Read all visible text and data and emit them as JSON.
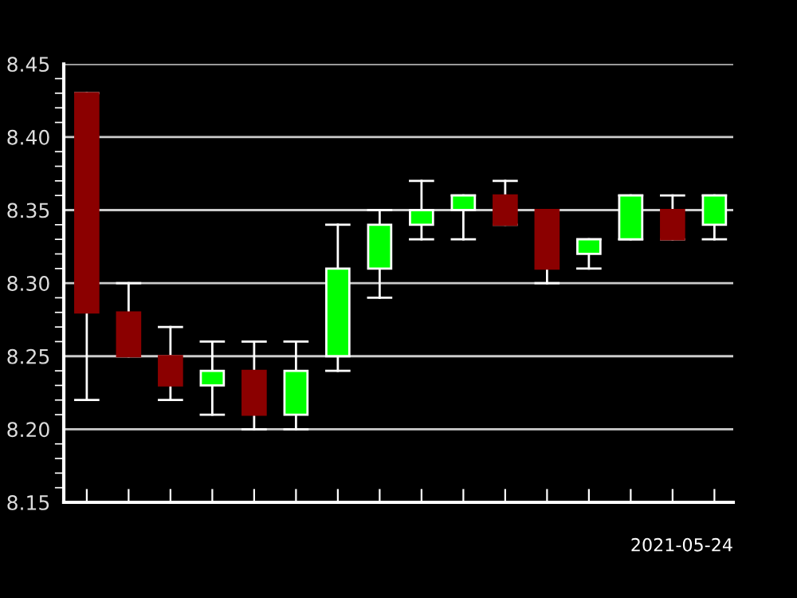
{
  "chart_data": {
    "type": "candlestick",
    "categories": [
      null,
      null,
      null,
      null,
      null,
      null,
      null,
      null,
      null,
      null,
      null,
      null,
      null,
      null,
      null,
      null
    ],
    "ohlc": [
      [
        8.43,
        8.43,
        8.22,
        8.28
      ],
      [
        8.28,
        8.3,
        8.25,
        8.25
      ],
      [
        8.25,
        8.27,
        8.22,
        8.23
      ],
      [
        8.23,
        8.26,
        8.21,
        8.24
      ],
      [
        8.24,
        8.26,
        8.2,
        8.21
      ],
      [
        8.21,
        8.26,
        8.2,
        8.24
      ],
      [
        8.25,
        8.34,
        8.24,
        8.31
      ],
      [
        8.31,
        8.35,
        8.29,
        8.34
      ],
      [
        8.34,
        8.37,
        8.33,
        8.35
      ],
      [
        8.35,
        8.36,
        8.33,
        8.36
      ],
      [
        8.36,
        8.37,
        8.34,
        8.34
      ],
      [
        8.35,
        8.35,
        8.3,
        8.31
      ],
      [
        8.32,
        8.33,
        8.31,
        8.33
      ],
      [
        8.33,
        8.36,
        8.33,
        8.36
      ],
      [
        8.35,
        8.36,
        8.33,
        8.33
      ],
      [
        8.34,
        8.36,
        8.33,
        8.36
      ]
    ],
    "colors": [
      "#8b0000",
      "#8b0000",
      "#8b0000",
      "#00ff00",
      "#8b0000",
      "#00ff00",
      "#00ff00",
      "#00ff00",
      "#00ff00",
      "#00ff00",
      "#8b0000",
      "#8b0000",
      "#00ff00",
      "#00ff00",
      "#8b0000",
      "#00ff00"
    ],
    "ylim": [
      8.15,
      8.45
    ],
    "yticks": [
      8.15,
      {
        "value": 8.2,
        "label": "8.20"
      },
      8.25,
      {
        "value": 8.3,
        "label": "8.30"
      },
      8.35,
      {
        "value": 8.4,
        "label": "8.40"
      },
      8.45
    ],
    "grid": "y",
    "xlabel": "2021-05-24",
    "tick_labels": "y"
  }
}
